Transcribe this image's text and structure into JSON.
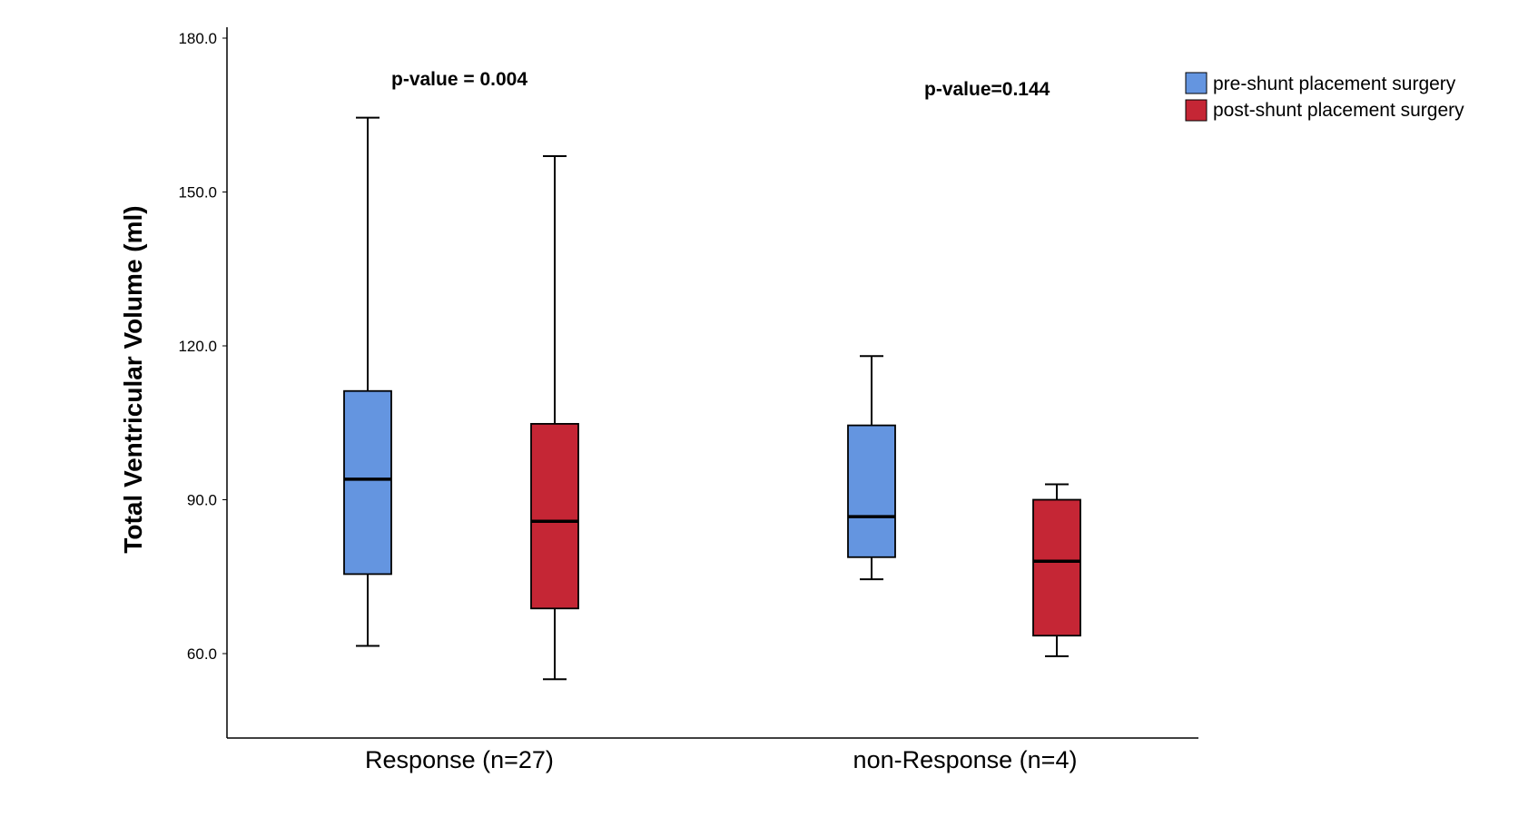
{
  "chart_data": {
    "type": "boxplot",
    "ylabel": "Total Ventricular Volume (ml)",
    "ylim": [
      43.0,
      182.0
    ],
    "yticks": [
      60.0,
      90.0,
      120.0,
      150.0,
      180.0
    ],
    "ytick_labels": [
      "60.0",
      "90.0",
      "120.0",
      "150.0",
      "180.0"
    ],
    "categories": [
      "Response (n=27)",
      "non-Response (n=4)"
    ],
    "series": [
      {
        "name": "pre-shunt placement surgery",
        "color": "#6495e0",
        "boxes": [
          {
            "min": 61.5,
            "q1": 75.5,
            "median": 94.0,
            "q3": 111.2,
            "max": 164.5
          },
          {
            "min": 74.5,
            "q1": 78.8,
            "median": 86.7,
            "q3": 104.5,
            "max": 118.0
          }
        ]
      },
      {
        "name": "post-shunt placement surgery",
        "color": "#c52635",
        "boxes": [
          {
            "min": 55.0,
            "q1": 68.8,
            "median": 85.8,
            "q3": 104.8,
            "max": 157.0
          },
          {
            "min": 59.5,
            "q1": 63.5,
            "median": 78.0,
            "q3": 90.0,
            "max": 93.0
          }
        ]
      }
    ],
    "annotations": [
      "p-value = 0.004",
      "p-value=0.144"
    ],
    "legend": [
      "pre-shunt placement surgery",
      "post-shunt placement surgery"
    ],
    "legend_position": "top-right"
  }
}
